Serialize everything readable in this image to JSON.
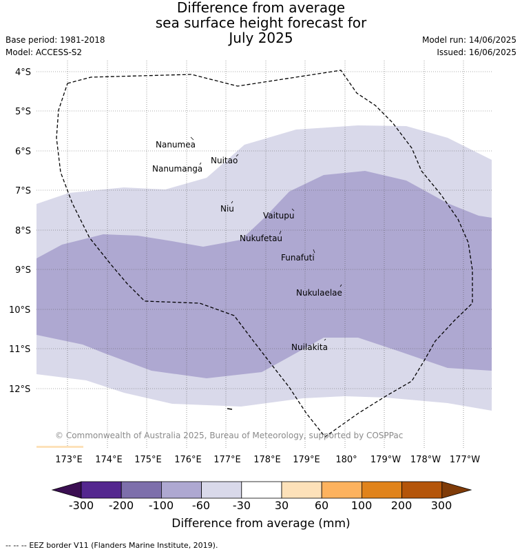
{
  "title_lines": [
    "Difference from average",
    "sea surface height forecast for",
    "July 2025"
  ],
  "meta_left": [
    "Base period: 1981-2018",
    "Model: ACCESS-S2"
  ],
  "meta_right": [
    "Model run: 14/06/2025",
    "Issued: 16/06/2025"
  ],
  "lat_labels": [
    "4°S",
    "5°S",
    "6°S",
    "7°S",
    "8°S",
    "9°S",
    "10°S",
    "11°S",
    "12°S"
  ],
  "lon_labels": [
    "173°E",
    "174°E",
    "175°E",
    "176°E",
    "177°E",
    "178°E",
    "179°E",
    "180°",
    "179°W",
    "178°W",
    "177°W"
  ],
  "islands": [
    "Nanumea",
    "Nuitao",
    "Nanumanga",
    "Niu",
    "Vaitupu",
    "Nukufetau",
    "Funafuti",
    "Nukulaelae",
    "Nuilakita"
  ],
  "copyright": "© Commonwealth of Australia 2025, Bureau of Meteorology, supported by COSPPac",
  "colorbar": {
    "title": "Difference from average (mm)",
    "labels": [
      "-300",
      "-200",
      "-100",
      "-60",
      "-30",
      "30",
      "60",
      "100",
      "200",
      "300"
    ],
    "colors": [
      "#3b0f52",
      "#54278f",
      "#7d6fab",
      "#aea8d1",
      "#d9d9ea",
      "#ffffff",
      "#fde1b9",
      "#fdb25e",
      "#e0831b",
      "#b4550a",
      "#7f3b08"
    ]
  },
  "legend": {
    "symbol": "-- -- --",
    "text": "EEZ border V11 (Flanders Marine Institute, 2019)."
  }
}
